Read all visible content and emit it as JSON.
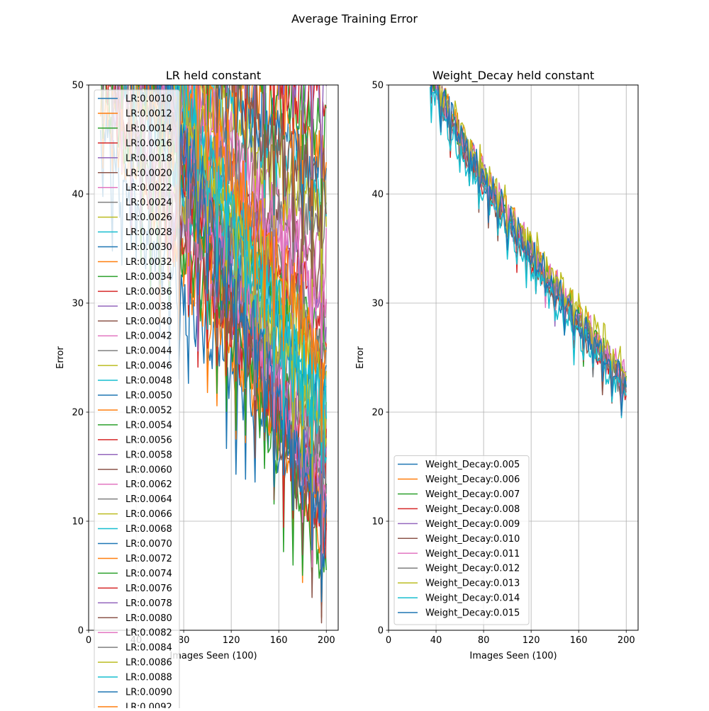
{
  "figure": {
    "title": "Average Training Error"
  },
  "chart_data": [
    {
      "type": "line",
      "title": "LR held constant",
      "xlabel": "Images Seen (100)",
      "ylabel": "Error",
      "xlim": [
        0,
        210
      ],
      "ylim": [
        0,
        50
      ],
      "xticks": [
        0,
        40,
        80,
        120,
        160,
        200
      ],
      "yticks": [
        0,
        10,
        20,
        30,
        40,
        50
      ],
      "xtick_labels": [
        "0",
        "40",
        "80",
        "120",
        "160",
        "200"
      ],
      "ytick_labels": [
        "0",
        "10",
        "20",
        "30",
        "40",
        "50"
      ],
      "grid": true,
      "legend_position": "upper-left",
      "x_start": 10,
      "x_end": 200,
      "series": [
        {
          "name": "LR:0.0010",
          "color": "#1f77b4",
          "start": 46,
          "end": 12
        },
        {
          "name": "LR:0.0012",
          "color": "#ff7f0e",
          "start": 50,
          "end": 13
        },
        {
          "name": "LR:0.0014",
          "color": "#2ca02c",
          "start": 52,
          "end": 14
        },
        {
          "name": "LR:0.0016",
          "color": "#d62728",
          "start": 53,
          "end": 15
        },
        {
          "name": "LR:0.0018",
          "color": "#9467bd",
          "start": 54,
          "end": 16
        },
        {
          "name": "LR:0.0020",
          "color": "#8c564b",
          "start": 55,
          "end": 17
        },
        {
          "name": "LR:0.0022",
          "color": "#e377c2",
          "start": 56,
          "end": 18
        },
        {
          "name": "LR:0.0024",
          "color": "#7f7f7f",
          "start": 57,
          "end": 19
        },
        {
          "name": "LR:0.0026",
          "color": "#bcbd22",
          "start": 58,
          "end": 20
        },
        {
          "name": "LR:0.0028",
          "color": "#17becf",
          "start": 58,
          "end": 21
        },
        {
          "name": "LR:0.0030",
          "color": "#1f77b4",
          "start": 59,
          "end": 22
        },
        {
          "name": "LR:0.0032",
          "color": "#ff7f0e",
          "start": 60,
          "end": 24
        },
        {
          "name": "LR:0.0034",
          "color": "#2ca02c",
          "start": 60,
          "end": 26
        },
        {
          "name": "LR:0.0036",
          "color": "#d62728",
          "start": 61,
          "end": 28
        },
        {
          "name": "LR:0.0038",
          "color": "#9467bd",
          "start": 62,
          "end": 30
        },
        {
          "name": "LR:0.0040",
          "color": "#8c564b",
          "start": 62,
          "end": 32
        },
        {
          "name": "LR:0.0042",
          "color": "#e377c2",
          "start": 63,
          "end": 34
        },
        {
          "name": "LR:0.0044",
          "color": "#7f7f7f",
          "start": 64,
          "end": 36
        },
        {
          "name": "LR:0.0046",
          "color": "#bcbd22",
          "start": 64,
          "end": 38
        },
        {
          "name": "LR:0.0048",
          "color": "#17becf",
          "start": 65,
          "end": 40
        },
        {
          "name": "LR:0.0050",
          "color": "#1f77b4",
          "start": 65,
          "end": 42
        },
        {
          "name": "LR:0.0052",
          "color": "#ff7f0e",
          "start": 66,
          "end": 44
        },
        {
          "name": "LR:0.0054",
          "color": "#2ca02c",
          "start": 66,
          "end": 46
        },
        {
          "name": "LR:0.0056",
          "color": "#d62728",
          "start": 67,
          "end": 48
        },
        {
          "name": "LR:0.0058",
          "color": "#9467bd",
          "start": 67,
          "end": 50
        },
        {
          "name": "LR:0.0060",
          "color": "#8c564b",
          "start": 68,
          "end": 40
        },
        {
          "name": "LR:0.0062",
          "color": "#e377c2",
          "start": 68,
          "end": 30
        },
        {
          "name": "LR:0.0064",
          "color": "#7f7f7f",
          "start": 69,
          "end": 26
        },
        {
          "name": "LR:0.0066",
          "color": "#bcbd22",
          "start": 69,
          "end": 23
        },
        {
          "name": "LR:0.0068",
          "color": "#17becf",
          "start": 70,
          "end": 20
        },
        {
          "name": "LR:0.0070",
          "color": "#1f77b4",
          "start": 70,
          "end": 10
        },
        {
          "name": "LR:0.0072",
          "color": "#ff7f0e",
          "start": 71,
          "end": 8
        },
        {
          "name": "LR:0.0074",
          "color": "#2ca02c",
          "start": 71,
          "end": 6
        },
        {
          "name": "LR:0.0076",
          "color": "#d62728",
          "start": 72,
          "end": 9
        },
        {
          "name": "LR:0.0078",
          "color": "#9467bd",
          "start": 72,
          "end": 11
        },
        {
          "name": "LR:0.0080",
          "color": "#8c564b",
          "start": 73,
          "end": 8
        },
        {
          "name": "LR:0.0082",
          "color": "#e377c2",
          "start": 73,
          "end": 12
        },
        {
          "name": "LR:0.0084",
          "color": "#7f7f7f",
          "start": 74,
          "end": 14
        },
        {
          "name": "LR:0.0086",
          "color": "#bcbd22",
          "start": 74,
          "end": 17
        },
        {
          "name": "LR:0.0088",
          "color": "#17becf",
          "start": 75,
          "end": 19
        },
        {
          "name": "LR:0.0090",
          "color": "#1f77b4",
          "start": 75,
          "end": 9
        },
        {
          "name": "LR:0.0092",
          "color": "#ff7f0e",
          "start": 76,
          "end": 25
        }
      ]
    },
    {
      "type": "line",
      "title": "Weight_Decay held constant",
      "xlabel": "Images Seen (100)",
      "ylabel": "Error",
      "xlim": [
        0,
        210
      ],
      "ylim": [
        0,
        50
      ],
      "xticks": [
        0,
        40,
        80,
        120,
        160,
        200
      ],
      "yticks": [
        0,
        10,
        20,
        30,
        40,
        50
      ],
      "xtick_labels": [
        "0",
        "40",
        "80",
        "120",
        "160",
        "200"
      ],
      "ytick_labels": [
        "0",
        "10",
        "20",
        "30",
        "40",
        "50"
      ],
      "grid": true,
      "legend_position": "lower-left",
      "x_start": 35,
      "x_end": 200,
      "series": [
        {
          "name": "Weight_Decay:0.005",
          "color": "#1f77b4",
          "start": 52,
          "end": 22.5
        },
        {
          "name": "Weight_Decay:0.006",
          "color": "#ff7f0e",
          "start": 52.5,
          "end": 23
        },
        {
          "name": "Weight_Decay:0.007",
          "color": "#2ca02c",
          "start": 52,
          "end": 22.5
        },
        {
          "name": "Weight_Decay:0.008",
          "color": "#d62728",
          "start": 51.5,
          "end": 22
        },
        {
          "name": "Weight_Decay:0.009",
          "color": "#9467bd",
          "start": 52,
          "end": 22.5
        },
        {
          "name": "Weight_Decay:0.010",
          "color": "#8c564b",
          "start": 51.5,
          "end": 22
        },
        {
          "name": "Weight_Decay:0.011",
          "color": "#e377c2",
          "start": 52,
          "end": 23
        },
        {
          "name": "Weight_Decay:0.012",
          "color": "#7f7f7f",
          "start": 51.5,
          "end": 22.5
        },
        {
          "name": "Weight_Decay:0.013",
          "color": "#bcbd22",
          "start": 52.5,
          "end": 24
        },
        {
          "name": "Weight_Decay:0.014",
          "color": "#17becf",
          "start": 50.5,
          "end": 21.5
        },
        {
          "name": "Weight_Decay:0.015",
          "color": "#1f77b4",
          "start": 52,
          "end": 22.5
        }
      ]
    }
  ]
}
